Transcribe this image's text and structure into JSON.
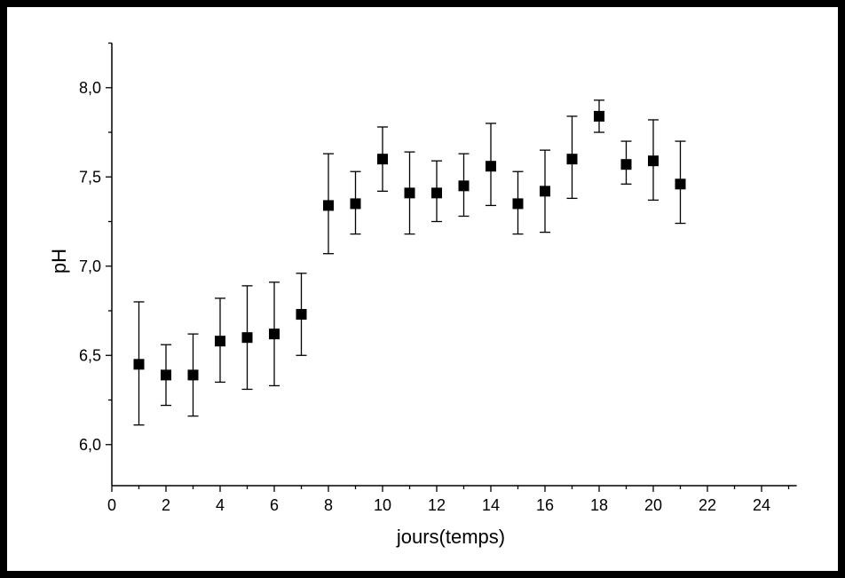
{
  "chart_data": {
    "type": "scatter",
    "title": "",
    "xlabel": "jours(temps)",
    "ylabel": "pH",
    "xlim": [
      0,
      25
    ],
    "ylim": [
      5.77,
      8.25
    ],
    "xticks": [
      0,
      2,
      4,
      6,
      8,
      10,
      12,
      14,
      16,
      18,
      20,
      22,
      24
    ],
    "xtick_labels": [
      "0",
      "2",
      "4",
      "6",
      "8",
      "10",
      "12",
      "14",
      "16",
      "18",
      "20",
      "22",
      "24"
    ],
    "yticks": [
      6.0,
      6.5,
      7.0,
      7.5,
      8.0
    ],
    "ytick_labels": [
      "6,0",
      "6,5",
      "7,0",
      "7,5",
      "8,0"
    ],
    "grid": false,
    "legend": "none",
    "marker": "square",
    "color": "#000000",
    "series": [
      {
        "x": [
          1,
          2,
          3,
          4,
          5,
          6,
          7,
          8,
          9,
          10,
          11,
          12,
          13,
          14,
          15,
          16,
          17,
          18,
          19,
          20,
          21
        ],
        "y": [
          6.45,
          6.39,
          6.39,
          6.58,
          6.6,
          6.62,
          6.73,
          7.34,
          7.35,
          7.6,
          7.41,
          7.41,
          7.45,
          7.56,
          7.35,
          7.42,
          7.6,
          7.84,
          7.57,
          7.59,
          7.46
        ],
        "err_low": [
          6.11,
          6.22,
          6.16,
          6.35,
          6.31,
          6.33,
          6.5,
          7.07,
          7.18,
          7.42,
          7.18,
          7.25,
          7.28,
          7.34,
          7.18,
          7.19,
          7.38,
          7.75,
          7.46,
          7.37,
          7.24
        ],
        "err_high": [
          6.8,
          6.56,
          6.62,
          6.82,
          6.89,
          6.91,
          6.96,
          7.63,
          7.53,
          7.78,
          7.64,
          7.59,
          7.63,
          7.8,
          7.53,
          7.65,
          7.84,
          7.93,
          7.7,
          7.82,
          7.7
        ]
      }
    ]
  }
}
